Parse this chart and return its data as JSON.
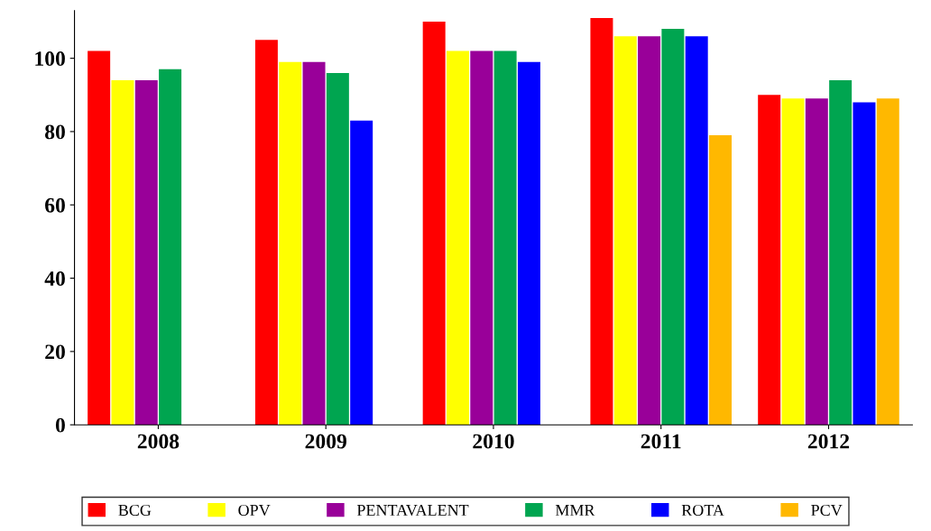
{
  "chart_data": {
    "type": "bar",
    "categories": [
      "2008",
      "2009",
      "2010",
      "2011",
      "2012"
    ],
    "series": [
      {
        "name": "BCG",
        "color": "#ff0000",
        "values": [
          102,
          105,
          110,
          111,
          90
        ]
      },
      {
        "name": "OPV",
        "color": "#ffff00",
        "values": [
          94,
          99,
          102,
          106,
          89
        ]
      },
      {
        "name": "PENTAVALENT",
        "color": "#990099",
        "values": [
          94,
          99,
          102,
          106,
          89
        ]
      },
      {
        "name": "MMR",
        "color": "#00a550",
        "values": [
          97,
          96,
          102,
          108,
          94
        ]
      },
      {
        "name": "ROTA",
        "color": "#0000ff",
        "values": [
          null,
          83,
          99,
          106,
          88
        ]
      },
      {
        "name": "PCV",
        "color": "#ffb800",
        "values": [
          null,
          null,
          null,
          79,
          89
        ]
      }
    ],
    "ylim": [
      0,
      113
    ],
    "yticks": [
      0,
      20,
      40,
      60,
      80,
      100
    ],
    "grid": false,
    "legend": "bottom"
  }
}
